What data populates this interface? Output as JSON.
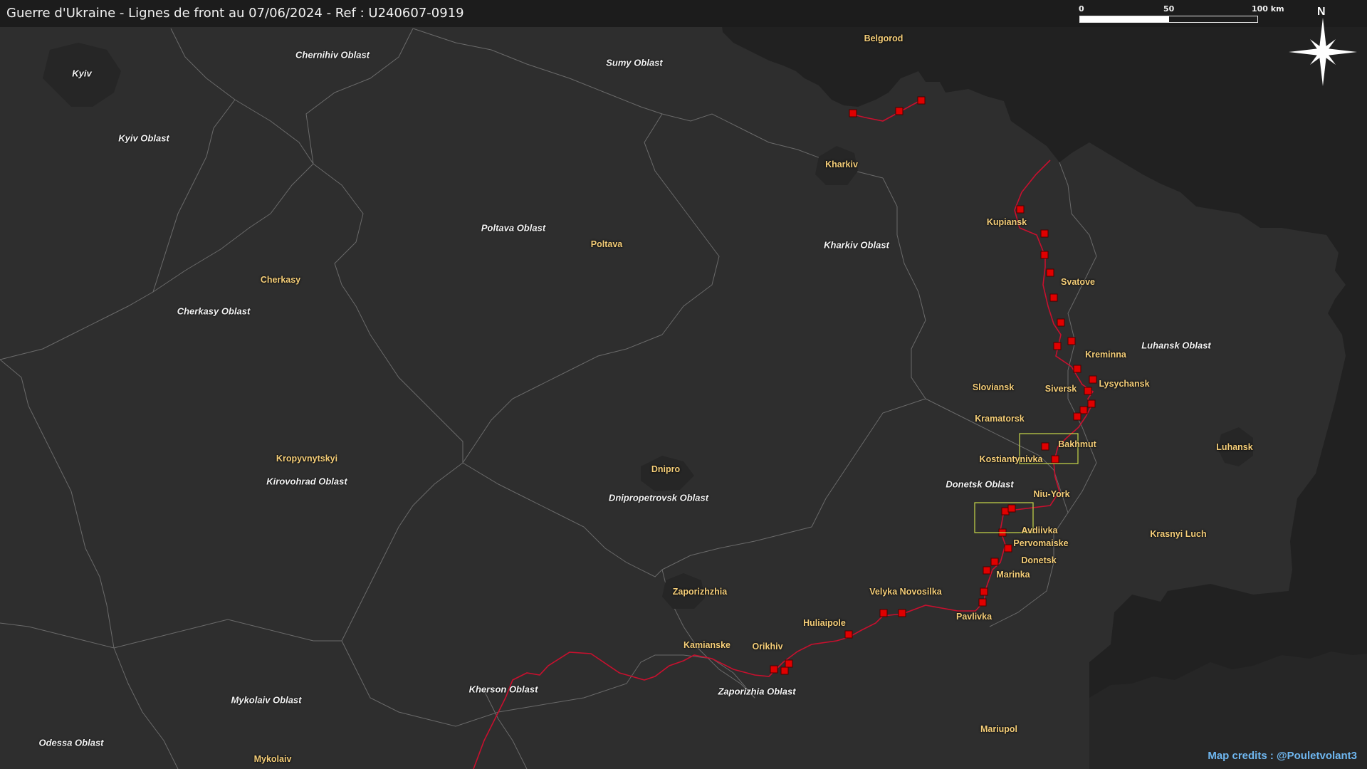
{
  "title": "Guerre d'Ukraine - Lignes de front au 07/06/2024 - Ref : U240607-0919",
  "scale_bar": {
    "labels": [
      "0",
      "50",
      "100 km"
    ]
  },
  "compass": {
    "label": "N",
    "icon": "north-arrow-icon"
  },
  "credit": "Map credits : @Pouletvolant3",
  "colors": {
    "background": "#2e2e2e",
    "russia_area": "#212121",
    "titlebar": "#1c1c1c",
    "front_line": "#c8102e",
    "marker": "#e00000",
    "focus_box": "#c8d84a",
    "oblast_label": "#f4f4f4",
    "city_label": "#f6cf7a",
    "credit": "#6fb7f0"
  },
  "oblasts": [
    "Chernihiv Oblast",
    "Sumy Oblast",
    "Kyiv Oblast",
    "Poltava Oblast",
    "Kharkiv Oblast",
    "Cherkasy Oblast",
    "Luhansk Oblast",
    "Donetsk Oblast",
    "Kirovohrad Oblast",
    "Dnipropetrovsk Oblast",
    "Kherson Oblast",
    "Zaporizhia Oblast",
    "Mykolaiv Oblast",
    "Odessa Oblast"
  ],
  "cities": [
    "Kyiv",
    "Belgorod",
    "Kharkiv",
    "Kupiansk",
    "Poltava",
    "Svatove",
    "Cherkasy",
    "Kreminna",
    "Sloviansk",
    "Siversk",
    "Lysychansk",
    "Kramatorsk",
    "Bakhmut",
    "Kostiantynivka",
    "Luhansk",
    "Kropyvnytskyi",
    "Dnipro",
    "Niu-York",
    "Avdiivka",
    "Pervomaiske",
    "Krasnyi Luch",
    "Donetsk",
    "Marinka",
    "Zaporizhzhia",
    "Velyka Novosilka",
    "Pavlivka",
    "Huliaipole",
    "Kamianske",
    "Orikhiv",
    "Mariupol",
    "Mykolaiv"
  ]
}
